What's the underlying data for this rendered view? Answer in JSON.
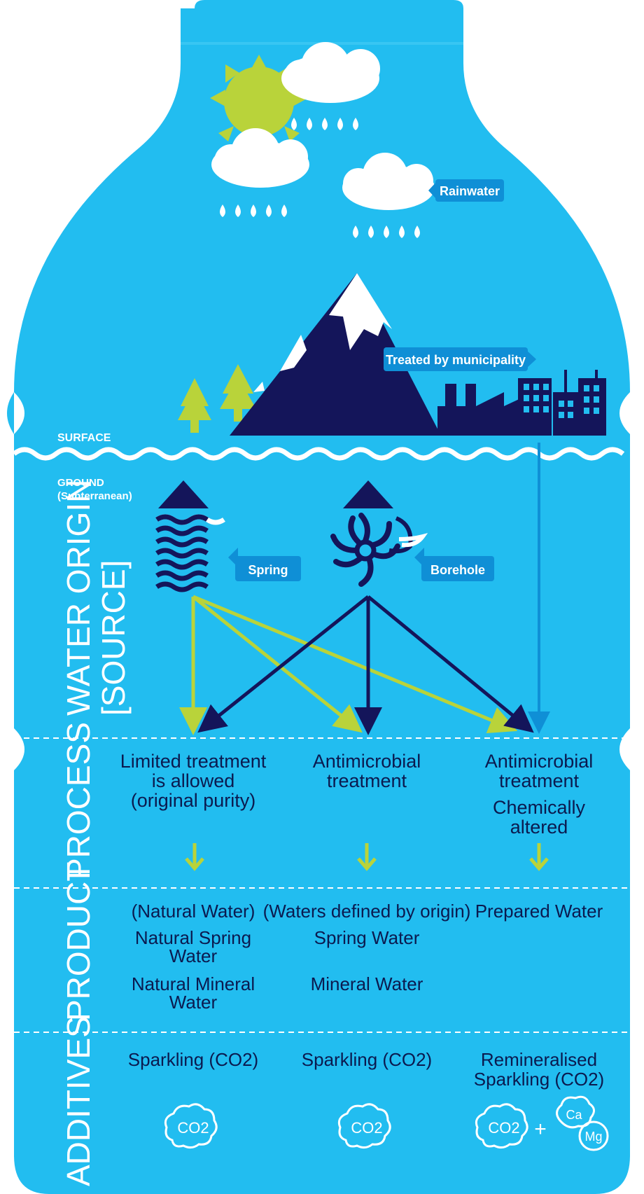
{
  "labels": {
    "rainwater": "Rainwater",
    "municipality": "Treated by municipality",
    "surface": "SURFACE",
    "ground_1": "GROUND",
    "ground_2": "(Subterranean)",
    "spring": "Spring",
    "borehole": "Borehole"
  },
  "sections": {
    "origin_1": "WATER ORIGIN",
    "origin_2": "[SOURCE]",
    "process": "PROCESS",
    "product": "PRODUCT",
    "additives": "ADDITIVES"
  },
  "process": {
    "col1": [
      "Limited treatment",
      "is allowed",
      "(original purity)"
    ],
    "col2": [
      "Antimicrobial",
      "treatment"
    ],
    "col3": [
      "Antimicrobial",
      "treatment",
      "Chemically",
      "altered"
    ]
  },
  "product": {
    "col1_header": "(Natural Water)",
    "col1_a": [
      "Natural Spring",
      "Water"
    ],
    "col1_b": [
      "Natural Mineral",
      "Water"
    ],
    "col2_header": "(Waters defined by origin)",
    "col2_a": "Spring Water",
    "col2_b": "Mineral Water",
    "col3_header": "Prepared Water"
  },
  "additives": {
    "col1": "Sparkling (CO2)",
    "col2": "Sparkling (CO2)",
    "col3": [
      "Remineralised",
      "Sparkling (CO2)"
    ],
    "co2": "CO2",
    "plus": "+",
    "ca": "Ca",
    "mg": "Mg"
  },
  "colors": {
    "bottle": "#22bdf0",
    "navy": "#14155a",
    "lime": "#b9d33a",
    "tag": "#0f8fd6",
    "dark_text": "#0b1a4f"
  }
}
